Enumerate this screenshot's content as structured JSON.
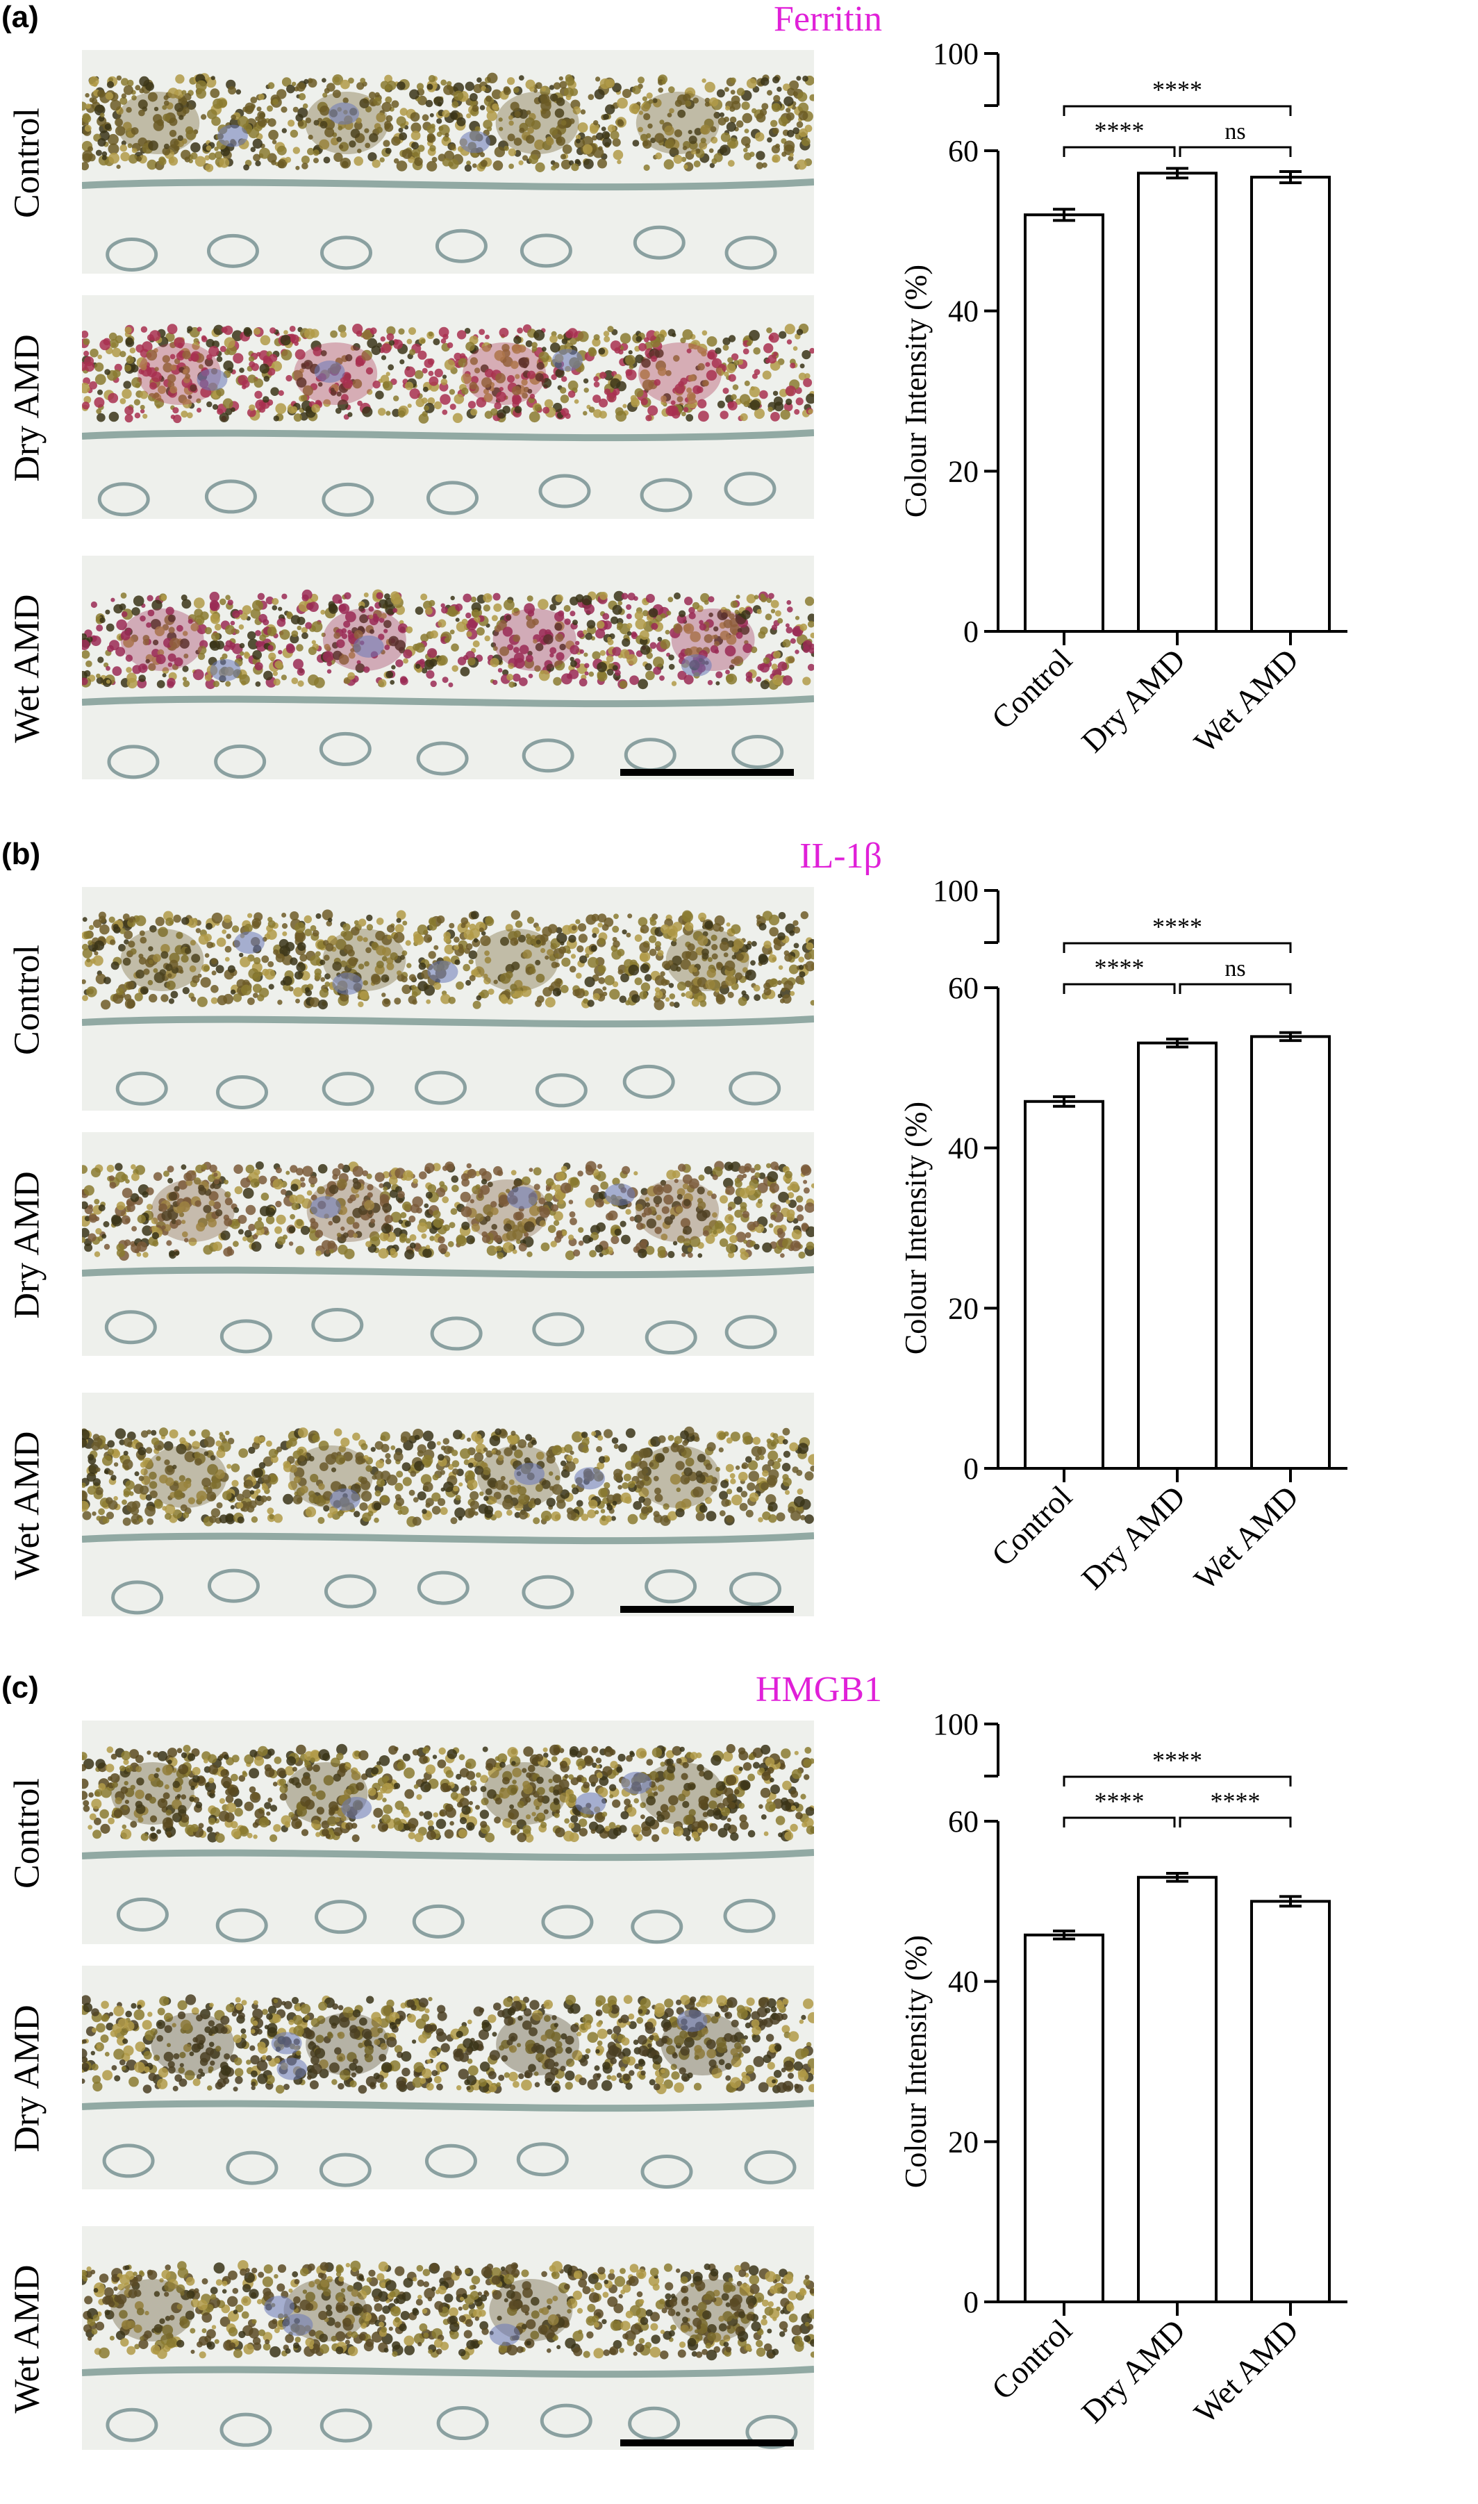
{
  "row_labels": [
    "Control",
    "Dry AMD",
    "Wet AMD"
  ],
  "chart_data": [
    {
      "type": "bar",
      "panel": "(a)",
      "stain": "Ferritin",
      "categories": [
        "Control",
        "Dry AMD",
        "Wet AMD"
      ],
      "values": [
        52,
        57.2,
        56.7
      ],
      "errors": [
        0.7,
        0.6,
        0.7
      ],
      "ylabel": "Colour Intensity (%)",
      "ylim": [
        0,
        100
      ],
      "axis_break": [
        60,
        100
      ],
      "yticks": [
        0,
        20,
        40,
        60,
        100
      ],
      "significance": [
        {
          "from": "Control",
          "to": "Dry AMD",
          "label": "****"
        },
        {
          "from": "Dry AMD",
          "to": "Wet AMD",
          "label": "ns"
        },
        {
          "from": "Control",
          "to": "Wet AMD",
          "label": "****"
        }
      ],
      "micro_colors": [
        "#6b5a24",
        "#a83050",
        "#9a2a55"
      ]
    },
    {
      "type": "bar",
      "panel": "(b)",
      "stain": "IL-1β",
      "categories": [
        "Control",
        "Dry AMD",
        "Wet AMD"
      ],
      "values": [
        45.8,
        53.1,
        53.9
      ],
      "errors": [
        0.6,
        0.5,
        0.5
      ],
      "ylabel": "Colour Intensity (%)",
      "ylim": [
        0,
        100
      ],
      "axis_break": [
        60,
        100
      ],
      "yticks": [
        0,
        20,
        40,
        60,
        100
      ],
      "significance": [
        {
          "from": "Control",
          "to": "Dry AMD",
          "label": "****"
        },
        {
          "from": "Dry AMD",
          "to": "Wet AMD",
          "label": "ns"
        },
        {
          "from": "Control",
          "to": "Wet AMD",
          "label": "****"
        }
      ],
      "micro_colors": [
        "#6e5c28",
        "#7a5a3a",
        "#6a5a2c"
      ]
    },
    {
      "type": "bar",
      "panel": "(c)",
      "stain": "HMGB1",
      "categories": [
        "Control",
        "Dry AMD",
        "Wet AMD"
      ],
      "values": [
        45.8,
        53,
        50
      ],
      "errors": [
        0.5,
        0.5,
        0.6
      ],
      "ylabel": "Colour Intensity (%)",
      "ylim": [
        0,
        100
      ],
      "axis_break": [
        60,
        100
      ],
      "yticks": [
        0,
        20,
        40,
        60,
        100
      ],
      "significance": [
        {
          "from": "Control",
          "to": "Dry AMD",
          "label": "****"
        },
        {
          "from": "Dry AMD",
          "to": "Wet AMD",
          "label": "****"
        },
        {
          "from": "Control",
          "to": "Wet AMD",
          "label": "****"
        }
      ],
      "micro_colors": [
        "#5a4a20",
        "#4a3e22",
        "#5a4a24"
      ]
    }
  ]
}
